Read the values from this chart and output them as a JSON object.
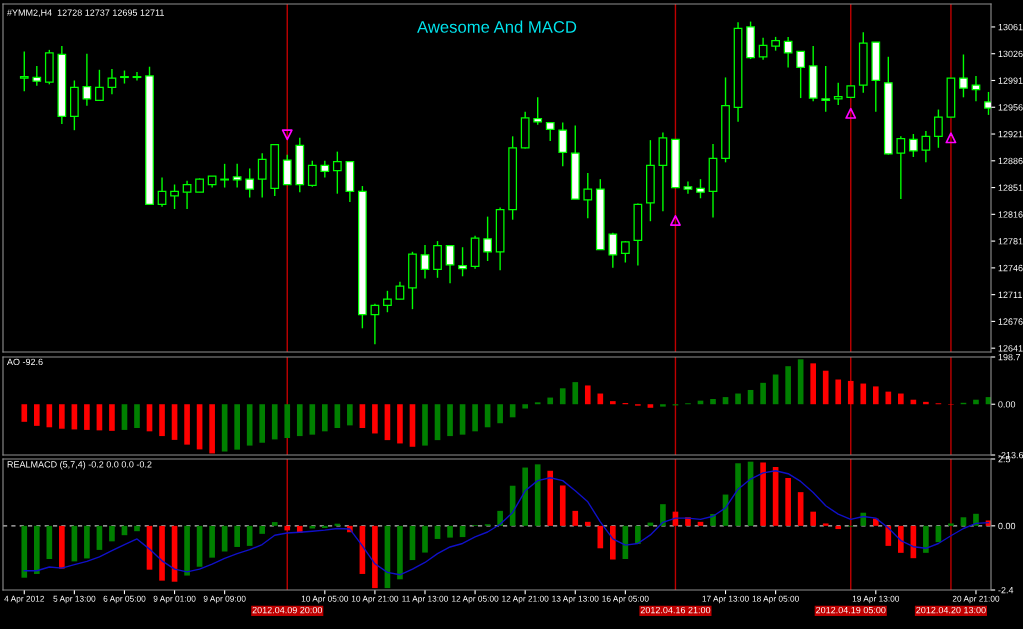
{
  "chart_data": [
    {
      "type": "candlestick",
      "title": "Awesome And MACD",
      "annotations": [
        "#YMM2,H4  12728 12737 12695 12711"
      ],
      "categories": [
        "4 Apr 2012",
        null,
        null,
        null,
        "5 Apr 13:00",
        null,
        null,
        null,
        "6 Apr 05:00",
        null,
        null,
        null,
        "9 Apr 01:00",
        null,
        null,
        null,
        "9 Apr 09:00",
        null,
        null,
        null,
        null,
        "2012.04.09 20:00",
        null,
        null,
        "10 Apr 05:00",
        null,
        null,
        null,
        "10 Apr 21:00",
        null,
        null,
        null,
        "11 Apr 13:00",
        null,
        null,
        null,
        "12 Apr 05:00",
        null,
        null,
        null,
        "12 Apr 21:00",
        null,
        null,
        null,
        "13 Apr 13:00",
        null,
        null,
        null,
        "16 Apr 05:00",
        null,
        null,
        null,
        "2012.04.16 21:00",
        null,
        null,
        null,
        "17 Apr 13:00",
        null,
        null,
        null,
        "18 Apr 05:00",
        null,
        null,
        null,
        null,
        null,
        "2012.04.19 05:00",
        null,
        "19 Apr 13:00",
        null,
        null,
        null,
        null,
        null,
        "2012.04.20 13:00",
        null,
        "20 Apr 21:00",
        null
      ],
      "color": "#00ff00",
      "ohlc": [
        [
          12994,
          13029,
          12977,
          12996
        ],
        [
          12995,
          13010,
          12984,
          12990
        ],
        [
          12989,
          13031,
          12986,
          13027
        ],
        [
          13025,
          13036,
          12934,
          12944
        ],
        [
          12944,
          12991,
          12926,
          12982
        ],
        [
          12983,
          13026,
          12958,
          12967
        ],
        [
          12965,
          13005,
          12965,
          12982
        ],
        [
          12982,
          13006,
          12973,
          12994
        ],
        [
          12995,
          13004,
          12987,
          12996
        ],
        [
          12995,
          13002,
          12991,
          12996
        ],
        [
          12997,
          13009,
          12829,
          12829
        ],
        [
          12829,
          12864,
          12826,
          12846
        ],
        [
          12840,
          12855,
          12823,
          12846
        ],
        [
          12845,
          12860,
          12823,
          12855
        ],
        [
          12845,
          12863,
          12845,
          12862
        ],
        [
          12855,
          12866,
          12851,
          12866
        ],
        [
          12861,
          12882,
          12851,
          12862
        ],
        [
          12865,
          12882,
          12851,
          12861
        ],
        [
          12862,
          12876,
          12838,
          12849
        ],
        [
          12862,
          12896,
          12838,
          12888
        ],
        [
          12850,
          12907,
          12840,
          12907
        ],
        [
          12887,
          12894,
          12855,
          12855
        ],
        [
          12906,
          12916,
          12845,
          12855
        ],
        [
          12854,
          12886,
          12852,
          12880
        ],
        [
          12880,
          12886,
          12864,
          12872
        ],
        [
          12873,
          12898,
          12843,
          12885
        ],
        [
          12885,
          12885,
          12832,
          12846
        ],
        [
          12846,
          12853,
          12667,
          12685
        ],
        [
          12685,
          12699,
          12646,
          12697
        ],
        [
          12697,
          12716,
          12688,
          12705
        ],
        [
          12705,
          12728,
          12705,
          12722
        ],
        [
          12720,
          12767,
          12692,
          12764
        ],
        [
          12763,
          12776,
          12732,
          12744
        ],
        [
          12744,
          12781,
          12733,
          12775
        ],
        [
          12775,
          12775,
          12726,
          12750
        ],
        [
          12749,
          12773,
          12735,
          12745
        ],
        [
          12748,
          12788,
          12745,
          12785
        ],
        [
          12784,
          12813,
          12755,
          12767
        ],
        [
          12767,
          12825,
          12743,
          12822
        ],
        [
          12822,
          12918,
          12809,
          12903
        ],
        [
          12903,
          12950,
          12902,
          12942
        ],
        [
          12941,
          12969,
          12933,
          12937
        ],
        [
          12936,
          12936,
          12912,
          12927
        ],
        [
          12926,
          12936,
          12879,
          12897
        ],
        [
          12896,
          12932,
          12836,
          12836
        ],
        [
          12835,
          12870,
          12811,
          12849
        ],
        [
          12849,
          12862,
          12770,
          12770
        ],
        [
          12790,
          12792,
          12746,
          12763
        ],
        [
          12765,
          12781,
          12753,
          12780
        ],
        [
          12782,
          12830,
          12749,
          12829
        ],
        [
          12831,
          12913,
          12807,
          12880
        ],
        [
          12880,
          12923,
          12820,
          12916
        ],
        [
          12914,
          12914,
          12851,
          12851
        ],
        [
          12852,
          12859,
          12843,
          12849
        ],
        [
          12850,
          12862,
          12837,
          12845
        ],
        [
          12846,
          12908,
          12812,
          12889
        ],
        [
          12889,
          12995,
          12884,
          12958
        ],
        [
          12956,
          13067,
          12937,
          13059
        ],
        [
          13061,
          13068,
          13019,
          13021
        ],
        [
          13022,
          13047,
          13018,
          13037
        ],
        [
          13036,
          13048,
          13030,
          13043
        ],
        [
          13042,
          13048,
          13008,
          13027
        ],
        [
          13029,
          13029,
          12968,
          13008
        ],
        [
          13010,
          13036,
          12964,
          12968
        ],
        [
          12967,
          13010,
          12950,
          12965
        ],
        [
          12967,
          12988,
          12959,
          12970
        ],
        [
          12969,
          12984,
          12969,
          12984
        ],
        [
          12985,
          13054,
          12975,
          13040
        ],
        [
          13041,
          13041,
          12950,
          12991
        ],
        [
          12988,
          13022,
          12894,
          12895
        ],
        [
          12896,
          12918,
          12836,
          12915
        ],
        [
          12914,
          12921,
          12891,
          12899
        ],
        [
          12900,
          12925,
          12884,
          12918
        ],
        [
          12918,
          12953,
          12903,
          12943
        ],
        [
          12943,
          12994,
          12943,
          12994
        ],
        [
          12994,
          13025,
          12969,
          12981
        ],
        [
          12985,
          12997,
          12964,
          12979
        ],
        [
          12963,
          12976,
          12946,
          12955
        ]
      ],
      "series": [
        {
          "type": "scatter",
          "marker": "triangle",
          "color": "#ff00ff",
          "values": [
            null,
            null,
            null,
            null,
            null,
            null,
            null,
            null,
            null,
            null,
            null,
            null,
            null,
            null,
            null,
            null,
            null,
            null,
            null,
            null,
            null,
            12920,
            null,
            null,
            null,
            null,
            null,
            null,
            null,
            null,
            null,
            null,
            null,
            null,
            null,
            null,
            null,
            null,
            null,
            null,
            null,
            null,
            null,
            null,
            null,
            null,
            null,
            null,
            null,
            null,
            null,
            null,
            12808,
            null,
            null,
            null,
            null,
            null,
            null,
            null,
            null,
            null,
            null,
            null,
            null,
            null,
            12948,
            null,
            null,
            null,
            null,
            null,
            null,
            null,
            12916,
            null,
            null,
            null
          ]
        }
      ],
      "ylim": [
        12636,
        13091
      ],
      "yticks": [
        12641,
        12676,
        12711,
        12746,
        12781,
        12816,
        12851,
        12886,
        12921,
        12956,
        12991,
        13026,
        13061
      ],
      "ref_lines": [
        {
          "axis": "x",
          "value": "2012.04.09 20:00",
          "color": "#c00000"
        },
        {
          "axis": "x",
          "value": "2012.04.16 21:00",
          "color": "#c00000"
        },
        {
          "axis": "x",
          "value": "2012.04.19 05:00",
          "color": "#c00000"
        },
        {
          "axis": "x",
          "value": "2012.04.20 13:00",
          "color": "#c00000"
        }
      ],
      "tick_labels": "y"
    },
    {
      "type": "bar",
      "annotations": [
        "AO -92.6"
      ],
      "categories": [
        "4 Apr 2012",
        null,
        null,
        null,
        "5 Apr 13:00",
        null,
        null,
        null,
        "6 Apr 05:00",
        null,
        null,
        null,
        "9 Apr 01:00",
        null,
        null,
        null,
        "9 Apr 09:00",
        null,
        null,
        null,
        null,
        "2012.04.09 20:00",
        null,
        null,
        "10 Apr 05:00",
        null,
        null,
        null,
        "10 Apr 21:00",
        null,
        null,
        null,
        "11 Apr 13:00",
        null,
        null,
        null,
        "12 Apr 05:00",
        null,
        null,
        null,
        "12 Apr 21:00",
        null,
        null,
        null,
        "13 Apr 13:00",
        null,
        null,
        null,
        "16 Apr 05:00",
        null,
        null,
        null,
        "2012.04.16 21:00",
        null,
        null,
        null,
        "17 Apr 13:00",
        null,
        null,
        null,
        "18 Apr 05:00",
        null,
        null,
        null,
        null,
        null,
        "2012.04.19 05:00",
        null,
        "19 Apr 13:00",
        null,
        null,
        null,
        null,
        null,
        "2012.04.20 13:00",
        null,
        "20 Apr 21:00",
        null
      ],
      "series": [
        {
          "type": "bar",
          "values": [
            -74,
            -91,
            -97,
            -103,
            -106,
            -108,
            -110,
            -112,
            -108,
            -100,
            -114,
            -134,
            -150,
            -170,
            -190,
            -207,
            -199,
            -191,
            -174,
            -162,
            -148,
            -142,
            -134,
            -128,
            -114,
            -100,
            -89,
            -100,
            -123,
            -151,
            -165,
            -179,
            -174,
            -151,
            -134,
            -128,
            -114,
            -97,
            -80,
            -55,
            -18,
            8,
            28,
            67,
            93,
            79,
            45,
            13,
            5,
            -6,
            -15,
            -10,
            -5,
            4,
            15,
            22,
            30,
            45,
            60,
            90,
            125,
            160,
            189,
            172,
            141,
            104,
            98,
            87,
            75,
            53,
            45,
            19,
            10,
            4,
            -2,
            6,
            19,
            30
          ],
          "colors": [
            "#ff0000",
            "#ff0000",
            "#ff0000",
            "#ff0000",
            "#ff0000",
            "#ff0000",
            "#ff0000",
            "#ff0000",
            "#008000",
            "#008000",
            "#ff0000",
            "#ff0000",
            "#ff0000",
            "#ff0000",
            "#ff0000",
            "#ff0000",
            "#008000",
            "#008000",
            "#008000",
            "#008000",
            "#008000",
            "#008000",
            "#008000",
            "#008000",
            "#008000",
            "#008000",
            "#008000",
            "#ff0000",
            "#ff0000",
            "#ff0000",
            "#ff0000",
            "#ff0000",
            "#008000",
            "#008000",
            "#008000",
            "#008000",
            "#008000",
            "#008000",
            "#008000",
            "#008000",
            "#008000",
            "#008000",
            "#008000",
            "#008000",
            "#008000",
            "#ff0000",
            "#ff0000",
            "#ff0000",
            "#ff0000",
            "#ff0000",
            "#ff0000",
            "#008000",
            "#008000",
            "#008000",
            "#008000",
            "#008000",
            "#008000",
            "#008000",
            "#008000",
            "#008000",
            "#008000",
            "#008000",
            "#008000",
            "#ff0000",
            "#ff0000",
            "#ff0000",
            "#ff0000",
            "#ff0000",
            "#ff0000",
            "#ff0000",
            "#ff0000",
            "#ff0000",
            "#ff0000",
            "#ff0000",
            "#ff0000",
            "#008000",
            "#008000",
            "#008000"
          ]
        }
      ],
      "ylim": [
        -213.6,
        198.7
      ],
      "yticks": [
        198.7,
        {
          "value": 0,
          "label": "0.00"
        },
        -213.6
      ],
      "ref_lines": [
        {
          "axis": "x",
          "value": "2012.04.09 20:00",
          "color": "#c00000"
        },
        {
          "axis": "x",
          "value": "2012.04.16 21:00",
          "color": "#c00000"
        },
        {
          "axis": "x",
          "value": "2012.04.19 05:00",
          "color": "#c00000"
        },
        {
          "axis": "x",
          "value": "2012.04.20 13:00",
          "color": "#c00000"
        }
      ],
      "tick_labels": "y"
    },
    {
      "type": "bar",
      "annotations": [
        "REALMACD (5,7,4) -0.2 0.0 0.0 -0.2"
      ],
      "categories": [
        "4 Apr 2012",
        null,
        null,
        null,
        "5 Apr 13:00",
        null,
        null,
        null,
        "6 Apr 05:00",
        null,
        null,
        null,
        "9 Apr 01:00",
        null,
        null,
        null,
        "9 Apr 09:00",
        null,
        null,
        null,
        null,
        "2012.04.09 20:00",
        null,
        null,
        "10 Apr 05:00",
        null,
        null,
        null,
        "10 Apr 21:00",
        null,
        null,
        null,
        "11 Apr 13:00",
        null,
        null,
        null,
        "12 Apr 05:00",
        null,
        null,
        null,
        "12 Apr 21:00",
        null,
        null,
        null,
        "13 Apr 13:00",
        null,
        null,
        null,
        "16 Apr 05:00",
        null,
        null,
        null,
        "2012.04.16 21:00",
        null,
        null,
        null,
        "17 Apr 13:00",
        null,
        null,
        null,
        "18 Apr 05:00",
        null,
        null,
        null,
        null,
        null,
        "2012.04.19 05:00",
        null,
        "19 Apr 13:00",
        null,
        null,
        null,
        null,
        null,
        "2012.04.20 13:00",
        null,
        "20 Apr 21:00",
        null
      ],
      "series": [
        {
          "type": "bar",
          "values": [
            -1.94,
            -1.8,
            -1.24,
            -1.6,
            -1.33,
            -1.22,
            -0.9,
            -0.58,
            -0.35,
            -0.2,
            -1.64,
            -2.05,
            -2.09,
            -1.86,
            -1.53,
            -1.19,
            -0.96,
            -0.79,
            -0.75,
            -0.3,
            0.14,
            -0.17,
            -0.26,
            -0.1,
            -0.08,
            0.08,
            -0.24,
            -1.8,
            -2.33,
            -2.33,
            -2.0,
            -1.28,
            -1.0,
            -0.49,
            -0.44,
            -0.42,
            0.03,
            0.06,
            0.56,
            1.5,
            2.18,
            2.3,
            2.06,
            1.51,
            0.56,
            0.15,
            -0.84,
            -1.26,
            -1.24,
            -0.68,
            0.12,
            0.81,
            0.53,
            0.32,
            0.15,
            0.44,
            1.17,
            2.34,
            2.4,
            2.37,
            2.2,
            1.79,
            1.26,
            0.53,
            0.09,
            -0.12,
            -0.03,
            0.49,
            0.27,
            -0.75,
            -1.01,
            -1.21,
            -1.01,
            -0.61,
            0.09,
            0.32,
            0.45,
            0.2
          ],
          "colors": [
            "#008000",
            "#008000",
            "#008000",
            "#ff0000",
            "#008000",
            "#008000",
            "#008000",
            "#008000",
            "#008000",
            "#008000",
            "#ff0000",
            "#ff0000",
            "#ff0000",
            "#008000",
            "#008000",
            "#008000",
            "#008000",
            "#008000",
            "#008000",
            "#008000",
            "#008000",
            "#ff0000",
            "#ff0000",
            "#008000",
            "#008000",
            "#008000",
            "#ff0000",
            "#ff0000",
            "#ff0000",
            "#008000",
            "#008000",
            "#008000",
            "#008000",
            "#008000",
            "#008000",
            "#008000",
            "#008000",
            "#008000",
            "#008000",
            "#008000",
            "#008000",
            "#008000",
            "#ff0000",
            "#ff0000",
            "#ff0000",
            "#ff0000",
            "#ff0000",
            "#ff0000",
            "#008000",
            "#008000",
            "#008000",
            "#008000",
            "#ff0000",
            "#ff0000",
            "#ff0000",
            "#008000",
            "#008000",
            "#008000",
            "#008000",
            "#ff0000",
            "#ff0000",
            "#ff0000",
            "#ff0000",
            "#ff0000",
            "#ff0000",
            "#ff0000",
            "#008000",
            "#008000",
            "#ff0000",
            "#ff0000",
            "#ff0000",
            "#ff0000",
            "#008000",
            "#008000",
            "#008000",
            "#008000",
            "#008000",
            "#ff0000"
          ]
        },
        {
          "type": "line",
          "color": "#1010c8",
          "values": [
            -1.68,
            -1.68,
            -1.54,
            -1.58,
            -1.45,
            -1.33,
            -1.16,
            -0.93,
            -0.7,
            -0.49,
            -0.87,
            -1.31,
            -1.62,
            -1.72,
            -1.62,
            -1.43,
            -1.22,
            -1.04,
            -0.89,
            -0.7,
            -0.35,
            -0.27,
            -0.24,
            -0.2,
            -0.16,
            -0.1,
            -0.12,
            -0.75,
            -1.42,
            -1.74,
            -1.83,
            -1.62,
            -1.37,
            -1.04,
            -0.79,
            -0.66,
            -0.41,
            -0.23,
            0.06,
            0.5,
            1.31,
            1.69,
            1.8,
            1.69,
            1.31,
            0.9,
            0.15,
            -0.49,
            -0.72,
            -0.66,
            -0.34,
            0.13,
            0.29,
            0.29,
            0.24,
            0.36,
            0.67,
            1.37,
            1.75,
            1.98,
            2.06,
            1.95,
            1.66,
            1.25,
            0.75,
            0.44,
            0.24,
            0.35,
            0.29,
            -0.08,
            -0.55,
            -0.78,
            -0.84,
            -0.66,
            -0.37,
            -0.1,
            0.09,
            0.12
          ]
        }
      ],
      "ylim": [
        -2.4,
        2.5
      ],
      "yticks": [
        2.5,
        {
          "value": 0,
          "label": "0.00"
        },
        -2.4
      ],
      "ref_lines": [
        {
          "axis": "y",
          "value": 0,
          "color": "#c0c0c0",
          "line_style": "dashed"
        },
        {
          "axis": "x",
          "value": "2012.04.09 20:00",
          "color": "#c00000"
        },
        {
          "axis": "x",
          "value": "2012.04.16 21:00",
          "color": "#c00000"
        },
        {
          "axis": "x",
          "value": "2012.04.19 05:00",
          "color": "#c00000"
        },
        {
          "axis": "x",
          "value": "2012.04.20 13:00",
          "color": "#c00000"
        }
      ]
    }
  ]
}
